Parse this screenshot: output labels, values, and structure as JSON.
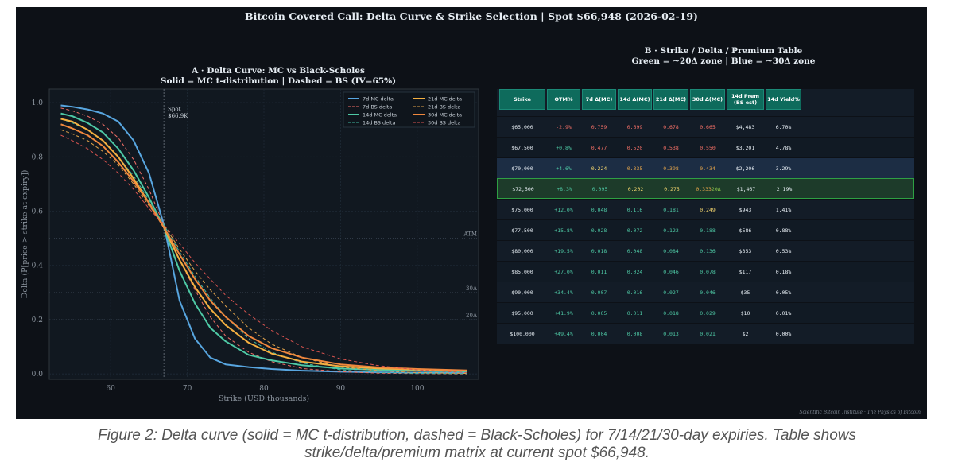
{
  "main_title": "Bitcoin Covered Call: Delta Curve & Strike Selection  |  Spot $66,948  (2026-02-19)",
  "chart_a": {
    "title_line1": "A  ·  Delta Curve: MC vs Black-Scholes",
    "title_line2": "Solid = MC t-distribution  |  Dashed = BS (IV=65%)"
  },
  "chart_b": {
    "title_line1": "B  ·  Strike / Delta / Premium Table",
    "title_line2": "Green = ~20Δ zone  |  Blue = ~30Δ zone"
  },
  "chart_data": [
    {
      "type": "line",
      "title": "A · Delta Curve: MC vs Black-Scholes",
      "xlabel": "Strike (USD thousands)",
      "ylabel": "Delta (P[price > strike at expiry])",
      "xlim": [
        52,
        108
      ],
      "ylim": [
        -0.02,
        1.05
      ],
      "xticks": [
        60,
        70,
        80,
        90,
        100
      ],
      "yticks": [
        0.0,
        0.2,
        0.4,
        0.6,
        0.8,
        1.0
      ],
      "x": [
        53.5,
        55,
        57,
        59,
        61,
        63,
        65,
        66.948,
        69,
        71,
        73,
        75,
        78,
        81,
        85,
        90,
        95,
        100,
        106.5
      ],
      "series": [
        {
          "name": "7d MC delta",
          "style": "solid",
          "color": "#58a6e0",
          "values": [
            0.99,
            0.985,
            0.975,
            0.96,
            0.93,
            0.86,
            0.74,
            0.55,
            0.27,
            0.13,
            0.06,
            0.035,
            0.025,
            0.018,
            0.012,
            0.008,
            0.006,
            0.005,
            0.004
          ]
        },
        {
          "name": "7d BS delta",
          "style": "dashed",
          "color": "#f47067",
          "values": [
            0.98,
            0.97,
            0.95,
            0.92,
            0.87,
            0.79,
            0.68,
            0.55,
            0.42,
            0.31,
            0.21,
            0.14,
            0.08,
            0.045,
            0.02,
            0.008,
            0.003,
            0.001,
            0.0
          ]
        },
        {
          "name": "14d MC delta",
          "style": "solid",
          "color": "#4ec9a5",
          "values": [
            0.96,
            0.95,
            0.925,
            0.89,
            0.83,
            0.75,
            0.65,
            0.54,
            0.38,
            0.26,
            0.17,
            0.12,
            0.07,
            0.05,
            0.032,
            0.02,
            0.015,
            0.012,
            0.009
          ]
        },
        {
          "name": "14d BS delta",
          "style": "dashed",
          "color": "#3fb6a0",
          "values": [
            0.94,
            0.925,
            0.9,
            0.86,
            0.8,
            0.73,
            0.64,
            0.55,
            0.45,
            0.36,
            0.28,
            0.21,
            0.13,
            0.08,
            0.04,
            0.015,
            0.006,
            0.002,
            0.001
          ]
        },
        {
          "name": "21d MC delta",
          "style": "solid",
          "color": "#f5b041",
          "values": [
            0.94,
            0.93,
            0.9,
            0.86,
            0.8,
            0.72,
            0.63,
            0.54,
            0.42,
            0.32,
            0.24,
            0.18,
            0.115,
            0.075,
            0.045,
            0.028,
            0.02,
            0.016,
            0.012
          ]
        },
        {
          "name": "21d BS delta",
          "style": "dashed",
          "color": "#e3a44a",
          "values": [
            0.9,
            0.885,
            0.86,
            0.82,
            0.77,
            0.7,
            0.62,
            0.55,
            0.46,
            0.38,
            0.31,
            0.25,
            0.17,
            0.11,
            0.06,
            0.025,
            0.012,
            0.005,
            0.002
          ]
        },
        {
          "name": "30d MC delta",
          "style": "solid",
          "color": "#f0883e",
          "values": [
            0.92,
            0.905,
            0.88,
            0.84,
            0.78,
            0.71,
            0.63,
            0.54,
            0.44,
            0.35,
            0.27,
            0.21,
            0.14,
            0.095,
            0.06,
            0.035,
            0.024,
            0.018,
            0.013
          ]
        },
        {
          "name": "30d BS delta",
          "style": "dashed",
          "color": "#d9534f",
          "values": [
            0.88,
            0.86,
            0.83,
            0.79,
            0.74,
            0.68,
            0.61,
            0.55,
            0.48,
            0.41,
            0.35,
            0.29,
            0.22,
            0.16,
            0.1,
            0.055,
            0.03,
            0.015,
            0.005
          ]
        }
      ],
      "annotations": [
        {
          "text": "Spot",
          "x": 66.948,
          "y": 0.97
        },
        {
          "text": "$66.9K",
          "x": 66.948,
          "y": 0.945
        }
      ],
      "reference_lines": [
        {
          "label": "ATM",
          "y": 0.5
        },
        {
          "label": "30Δ",
          "y": 0.3
        },
        {
          "label": "20Δ",
          "y": 0.2
        }
      ],
      "spot_x": 66.948,
      "legend_position": "top-right"
    },
    {
      "type": "table",
      "title": "B · Strike / Delta / Premium Table",
      "columns": [
        "Strike",
        "OTM%",
        "7d Δ(MC)",
        "14d Δ(MC)",
        "21d Δ(MC)",
        "30d Δ(MC)",
        "14d Prem (BS est)",
        "14d Yield%"
      ],
      "rows": [
        {
          "cells": [
            "$65,000",
            "-2.9%",
            "0.759",
            "0.699",
            "0.678",
            "0.665",
            "$4,483",
            "6.70%"
          ],
          "zone": "none"
        },
        {
          "cells": [
            "$67,500",
            "+0.8%",
            "0.477",
            "0.520",
            "0.538",
            "0.550",
            "$3,201",
            "4.78%"
          ],
          "zone": "none"
        },
        {
          "cells": [
            "$70,000",
            "+4.6%",
            "0.224",
            "0.335",
            "0.398",
            "0.434",
            "$2,206",
            "3.29%"
          ],
          "zone": "blue"
        },
        {
          "cells": [
            "$72,500",
            "+8.3%",
            "0.095",
            "0.202",
            "0.275",
            "0.333",
            "$1,467",
            "2.19%"
          ],
          "zone": "green",
          "tag": "20Δ"
        },
        {
          "cells": [
            "$75,000",
            "+12.0%",
            "0.048",
            "0.116",
            "0.181",
            "0.249",
            "$943",
            "1.41%"
          ],
          "zone": "none"
        },
        {
          "cells": [
            "$77,500",
            "+15.8%",
            "0.028",
            "0.072",
            "0.122",
            "0.188",
            "$586",
            "0.88%"
          ],
          "zone": "none"
        },
        {
          "cells": [
            "$80,000",
            "+19.5%",
            "0.018",
            "0.048",
            "0.084",
            "0.136",
            "$353",
            "0.53%"
          ],
          "zone": "none"
        },
        {
          "cells": [
            "$85,000",
            "+27.0%",
            "0.011",
            "0.024",
            "0.046",
            "0.078",
            "$117",
            "0.18%"
          ],
          "zone": "none"
        },
        {
          "cells": [
            "$90,000",
            "+34.4%",
            "0.007",
            "0.016",
            "0.027",
            "0.046",
            "$35",
            "0.05%"
          ],
          "zone": "none"
        },
        {
          "cells": [
            "$95,000",
            "+41.9%",
            "0.005",
            "0.011",
            "0.018",
            "0.029",
            "$10",
            "0.01%"
          ],
          "zone": "none"
        },
        {
          "cells": [
            "$100,000",
            "+49.4%",
            "0.004",
            "0.008",
            "0.013",
            "0.021",
            "$2",
            "0.00%"
          ],
          "zone": "none"
        }
      ]
    }
  ],
  "colors": {
    "background": "#0d1117",
    "header": "#0e6b5c",
    "blue_zone": "#1c2d44",
    "green_zone": "#1d3b2a"
  },
  "footer_credit": "Scientific Bitcoin Institute  ·  The Physics of Bitcoin",
  "caption_line1": "Figure 2: Delta curve (solid = MC t-distribution, dashed = Black-Scholes) for 7/14/21/30-day expiries. Table shows",
  "caption_line2": "strike/delta/premium matrix at current spot $66,948."
}
